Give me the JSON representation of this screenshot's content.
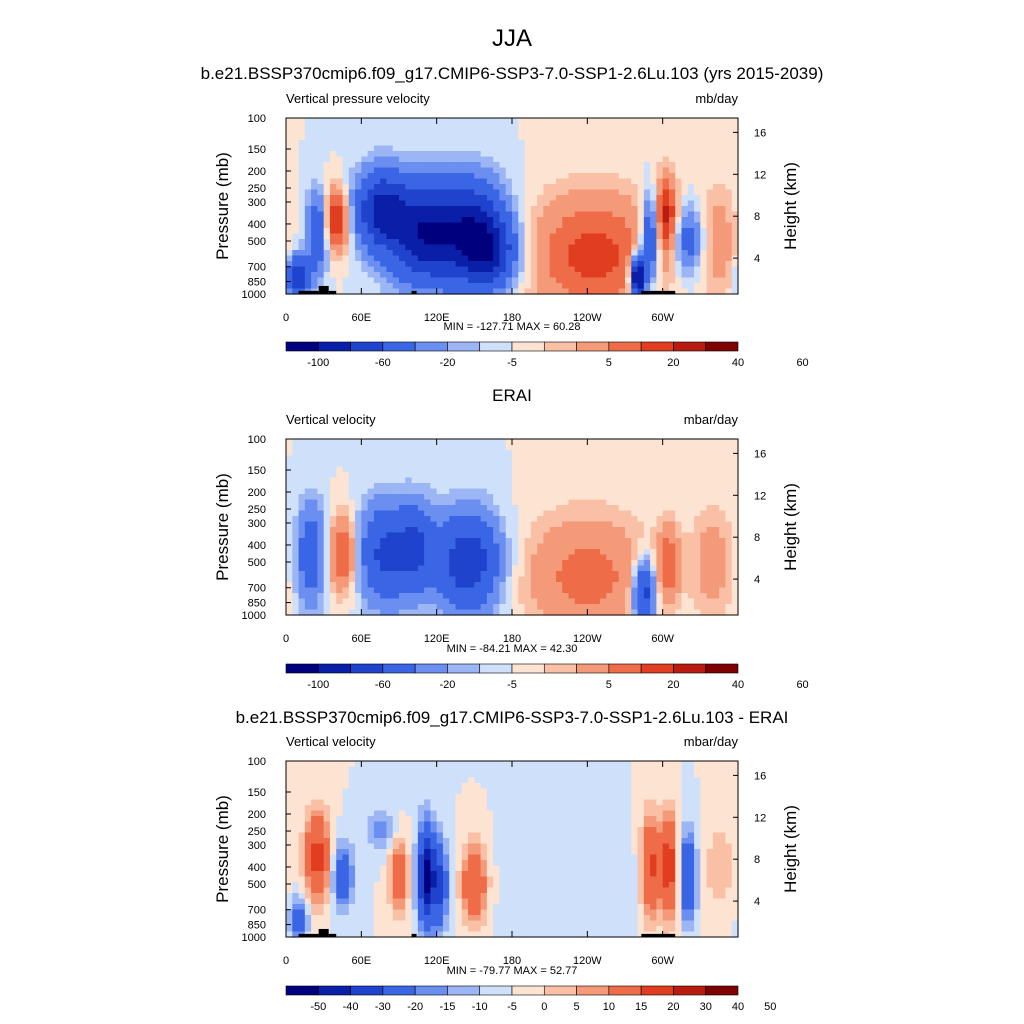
{
  "title": "JJA",
  "colors": {
    "cb_main": [
      "#00007f",
      "#0a1fa8",
      "#1f43cc",
      "#3a66e6",
      "#6a8ff0",
      "#9cb6f5",
      "#cfe0fb",
      "#fde3d2",
      "#f9c0a6",
      "#f49a78",
      "#ee6d48",
      "#e03d21",
      "#b81c10",
      "#7f0000"
    ],
    "cb_diff": [
      "#00007f",
      "#0a1fa8",
      "#1f43cc",
      "#3a66e6",
      "#6a8ff0",
      "#9cb6f5",
      "#cfe0fb",
      "#fde3d2",
      "#f9c0a6",
      "#f49a78",
      "#ee6d48",
      "#e03d21",
      "#b81c10",
      "#7f0000"
    ],
    "land": "#000000"
  },
  "chart_data": [
    {
      "type": "heatmap",
      "name": "model",
      "title": "b.e21.BSSP370cmip6.f09_g17.CMIP6-SSP3-7.0-SSP1-2.6Lu.103 (yrs 2015-2039)",
      "left_label": "Vertical pressure velocity",
      "right_label": "mb/day",
      "ylabel": "Pressure (mb)",
      "y2label": "Height (km)",
      "xticks": [
        "0",
        "60E",
        "120E",
        "180",
        "120W",
        "60W"
      ],
      "xtick_values": [
        0,
        60,
        120,
        180,
        240,
        300
      ],
      "xlim": [
        0,
        360
      ],
      "yticks": [
        "100",
        "150",
        "200",
        "250",
        "300",
        "400",
        "500",
        "700",
        "850",
        "1000"
      ],
      "ytick_values": [
        100,
        150,
        200,
        250,
        300,
        400,
        500,
        700,
        850,
        1000
      ],
      "y2ticks": [
        "4",
        "8",
        "12",
        "16"
      ],
      "y2tick_values": [
        4,
        8,
        12,
        16
      ],
      "minmax": "MIN = -127.71  MAX =  60.28",
      "min": -127.71,
      "max": 60.28,
      "levels": [
        -100,
        -80,
        -60,
        -40,
        -20,
        -10,
        -5,
        0,
        5,
        10,
        20,
        30,
        40,
        50,
        60
      ],
      "colorbar_labels": [
        "-100",
        "-60",
        "-20",
        "-5",
        "5",
        "20",
        "40",
        "60"
      ],
      "features": [
        {
          "lon": 10,
          "p": 800,
          "slon": 6,
          "sp": 0.18,
          "v": -60
        },
        {
          "lon": 25,
          "p": 450,
          "slon": 6,
          "sp": 0.35,
          "v": -40
        },
        {
          "lon": 40,
          "p": 380,
          "slon": 7,
          "sp": 0.28,
          "v": 45
        },
        {
          "lon": 75,
          "p": 330,
          "slon": 14,
          "sp": 0.35,
          "v": -60
        },
        {
          "lon": 110,
          "p": 450,
          "slon": 20,
          "sp": 0.45,
          "v": -75
        },
        {
          "lon": 150,
          "p": 450,
          "slon": 18,
          "sp": 0.45,
          "v": -70
        },
        {
          "lon": 165,
          "p": 600,
          "slon": 14,
          "sp": 0.3,
          "v": -40
        },
        {
          "lon": 245,
          "p": 600,
          "slon": 35,
          "sp": 0.55,
          "v": 35
        },
        {
          "lon": 280,
          "p": 800,
          "slon": 4,
          "sp": 0.2,
          "v": -100
        },
        {
          "lon": 290,
          "p": 500,
          "slon": 5,
          "sp": 0.4,
          "v": -50
        },
        {
          "lon": 303,
          "p": 350,
          "slon": 6,
          "sp": 0.35,
          "v": 40
        },
        {
          "lon": 320,
          "p": 500,
          "slon": 8,
          "sp": 0.3,
          "v": -30
        },
        {
          "lon": 345,
          "p": 500,
          "slon": 10,
          "sp": 0.5,
          "v": 15
        }
      ],
      "land": [
        [
          10,
          26,
          960,
          1000
        ],
        [
          26,
          34,
          900,
          1000
        ],
        [
          34,
          40,
          960,
          1000
        ],
        [
          100,
          104,
          960,
          1000
        ],
        [
          283,
          310,
          960,
          1000
        ]
      ]
    },
    {
      "type": "heatmap",
      "name": "obs",
      "title": "ERAI",
      "left_label": "Vertical velocity",
      "right_label": "mbar/day",
      "ylabel": "Pressure (mb)",
      "y2label": "Height (km)",
      "xticks": [
        "0",
        "60E",
        "120E",
        "180",
        "120W",
        "60W"
      ],
      "xtick_values": [
        0,
        60,
        120,
        180,
        240,
        300
      ],
      "xlim": [
        0,
        360
      ],
      "yticks": [
        "100",
        "150",
        "200",
        "250",
        "300",
        "400",
        "500",
        "700",
        "850",
        "1000"
      ],
      "ytick_values": [
        100,
        150,
        200,
        250,
        300,
        400,
        500,
        700,
        850,
        1000
      ],
      "y2ticks": [
        "4",
        "8",
        "12",
        "16"
      ],
      "y2tick_values": [
        4,
        8,
        12,
        16
      ],
      "minmax": "MIN = -84.21  MAX =  42.30",
      "min": -84.21,
      "max": 42.3,
      "levels": [
        -100,
        -80,
        -60,
        -40,
        -20,
        -10,
        -5,
        0,
        5,
        10,
        20,
        30,
        40,
        50,
        60
      ],
      "colorbar_labels": [
        "-100",
        "-60",
        "-20",
        "-5",
        "5",
        "20",
        "40",
        "60"
      ],
      "features": [
        {
          "lon": 20,
          "p": 450,
          "slon": 8,
          "sp": 0.45,
          "v": -35
        },
        {
          "lon": 45,
          "p": 450,
          "slon": 8,
          "sp": 0.35,
          "v": 35
        },
        {
          "lon": 80,
          "p": 450,
          "slon": 16,
          "sp": 0.45,
          "v": -45
        },
        {
          "lon": 105,
          "p": 400,
          "slon": 10,
          "sp": 0.4,
          "v": -30
        },
        {
          "lon": 145,
          "p": 500,
          "slon": 18,
          "sp": 0.45,
          "v": -55
        },
        {
          "lon": 240,
          "p": 600,
          "slon": 35,
          "sp": 0.55,
          "v": 25
        },
        {
          "lon": 285,
          "p": 750,
          "slon": 6,
          "sp": 0.3,
          "v": -55
        },
        {
          "lon": 305,
          "p": 500,
          "slon": 6,
          "sp": 0.35,
          "v": 25
        },
        {
          "lon": 340,
          "p": 500,
          "slon": 12,
          "sp": 0.5,
          "v": 15
        }
      ],
      "land": []
    },
    {
      "type": "heatmap",
      "name": "diff",
      "title": "b.e21.BSSP370cmip6.f09_g17.CMIP6-SSP3-7.0-SSP1-2.6Lu.103 - ERAI",
      "left_label": "Vertical velocity",
      "right_label": "mbar/day",
      "ylabel": "Pressure (mb)",
      "y2label": "Height (km)",
      "xticks": [
        "0",
        "60E",
        "120E",
        "180",
        "120W",
        "60W"
      ],
      "xtick_values": [
        0,
        60,
        120,
        180,
        240,
        300
      ],
      "xlim": [
        0,
        360
      ],
      "yticks": [
        "100",
        "150",
        "200",
        "250",
        "300",
        "400",
        "500",
        "700",
        "850",
        "1000"
      ],
      "ytick_values": [
        100,
        150,
        200,
        250,
        300,
        400,
        500,
        700,
        850,
        1000
      ],
      "y2ticks": [
        "4",
        "8",
        "12",
        "16"
      ],
      "y2tick_values": [
        4,
        8,
        12,
        16
      ],
      "minmax": "MIN = -79.77  MAX =  52.77",
      "min": -79.77,
      "max": 52.77,
      "levels": [
        -60,
        -50,
        -40,
        -30,
        -20,
        -15,
        -10,
        -5,
        0,
        5,
        10,
        15,
        20,
        30,
        40,
        50,
        60
      ],
      "colorbar_labels": [
        "-50",
        "-40",
        "-30",
        "-20",
        "-15",
        "-10",
        "-5",
        "0",
        "5",
        "10",
        "15",
        "20",
        "30",
        "40",
        "50"
      ],
      "features": [
        {
          "lon": 10,
          "p": 800,
          "slon": 5,
          "sp": 0.2,
          "v": -25
        },
        {
          "lon": 25,
          "p": 350,
          "slon": 7,
          "sp": 0.4,
          "v": 35
        },
        {
          "lon": 45,
          "p": 450,
          "slon": 6,
          "sp": 0.3,
          "v": -25
        },
        {
          "lon": 90,
          "p": 450,
          "slon": 5,
          "sp": 0.3,
          "v": 30
        },
        {
          "lon": 75,
          "p": 250,
          "slon": 8,
          "sp": 0.2,
          "v": -12
        },
        {
          "lon": 112,
          "p": 450,
          "slon": 5,
          "sp": 0.45,
          "v": -55
        },
        {
          "lon": 123,
          "p": 500,
          "slon": 4,
          "sp": 0.4,
          "v": -30
        },
        {
          "lon": 150,
          "p": 500,
          "slon": 7,
          "sp": 0.35,
          "v": 30
        },
        {
          "lon": 230,
          "p": 500,
          "slon": 40,
          "sp": 0.5,
          "v": -4
        },
        {
          "lon": 290,
          "p": 400,
          "slon": 5,
          "sp": 0.45,
          "v": 35
        },
        {
          "lon": 305,
          "p": 400,
          "slon": 5,
          "sp": 0.45,
          "v": 40
        },
        {
          "lon": 320,
          "p": 450,
          "slon": 5,
          "sp": 0.4,
          "v": -30
        },
        {
          "lon": 345,
          "p": 400,
          "slon": 10,
          "sp": 0.45,
          "v": 8
        }
      ],
      "land": [
        [
          10,
          26,
          960,
          1000
        ],
        [
          26,
          34,
          900,
          1000
        ],
        [
          34,
          40,
          960,
          1000
        ],
        [
          100,
          104,
          960,
          1000
        ],
        [
          283,
          310,
          960,
          1000
        ]
      ]
    }
  ]
}
